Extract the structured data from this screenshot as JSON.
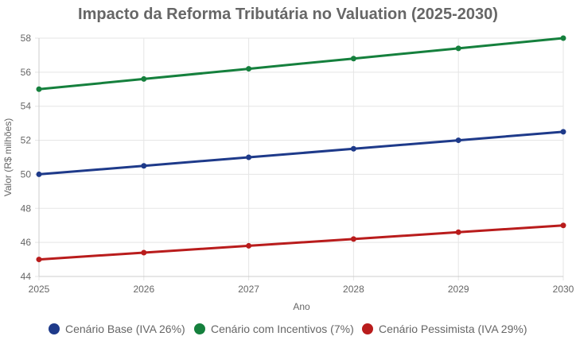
{
  "chart_data": {
    "type": "line",
    "title": "Impacto da Reforma Tributária no Valuation (2025-2030)",
    "xlabel": "Ano",
    "ylabel": "Valor (R$ milhões)",
    "x": [
      "2025",
      "2026",
      "2027",
      "2028",
      "2029",
      "2030"
    ],
    "ylim": [
      44,
      58
    ],
    "yticks": [
      "44",
      "46",
      "48",
      "50",
      "52",
      "54",
      "56",
      "58"
    ],
    "grid": true,
    "legend_position": "bottom",
    "series": [
      {
        "name": "Cenário Base (IVA 26%)",
        "color": "#1e3a8a",
        "values": [
          50,
          50.5,
          51,
          51.5,
          52,
          52.5
        ]
      },
      {
        "name": "Cenário com Incentivos (7%)",
        "color": "#15803d",
        "values": [
          55,
          55.6,
          56.2,
          56.8,
          57.4,
          58
        ]
      },
      {
        "name": "Cenário Pessimista (IVA 29%)",
        "color": "#b91c1c",
        "values": [
          45,
          45.4,
          45.8,
          46.2,
          46.6,
          47
        ]
      }
    ]
  }
}
